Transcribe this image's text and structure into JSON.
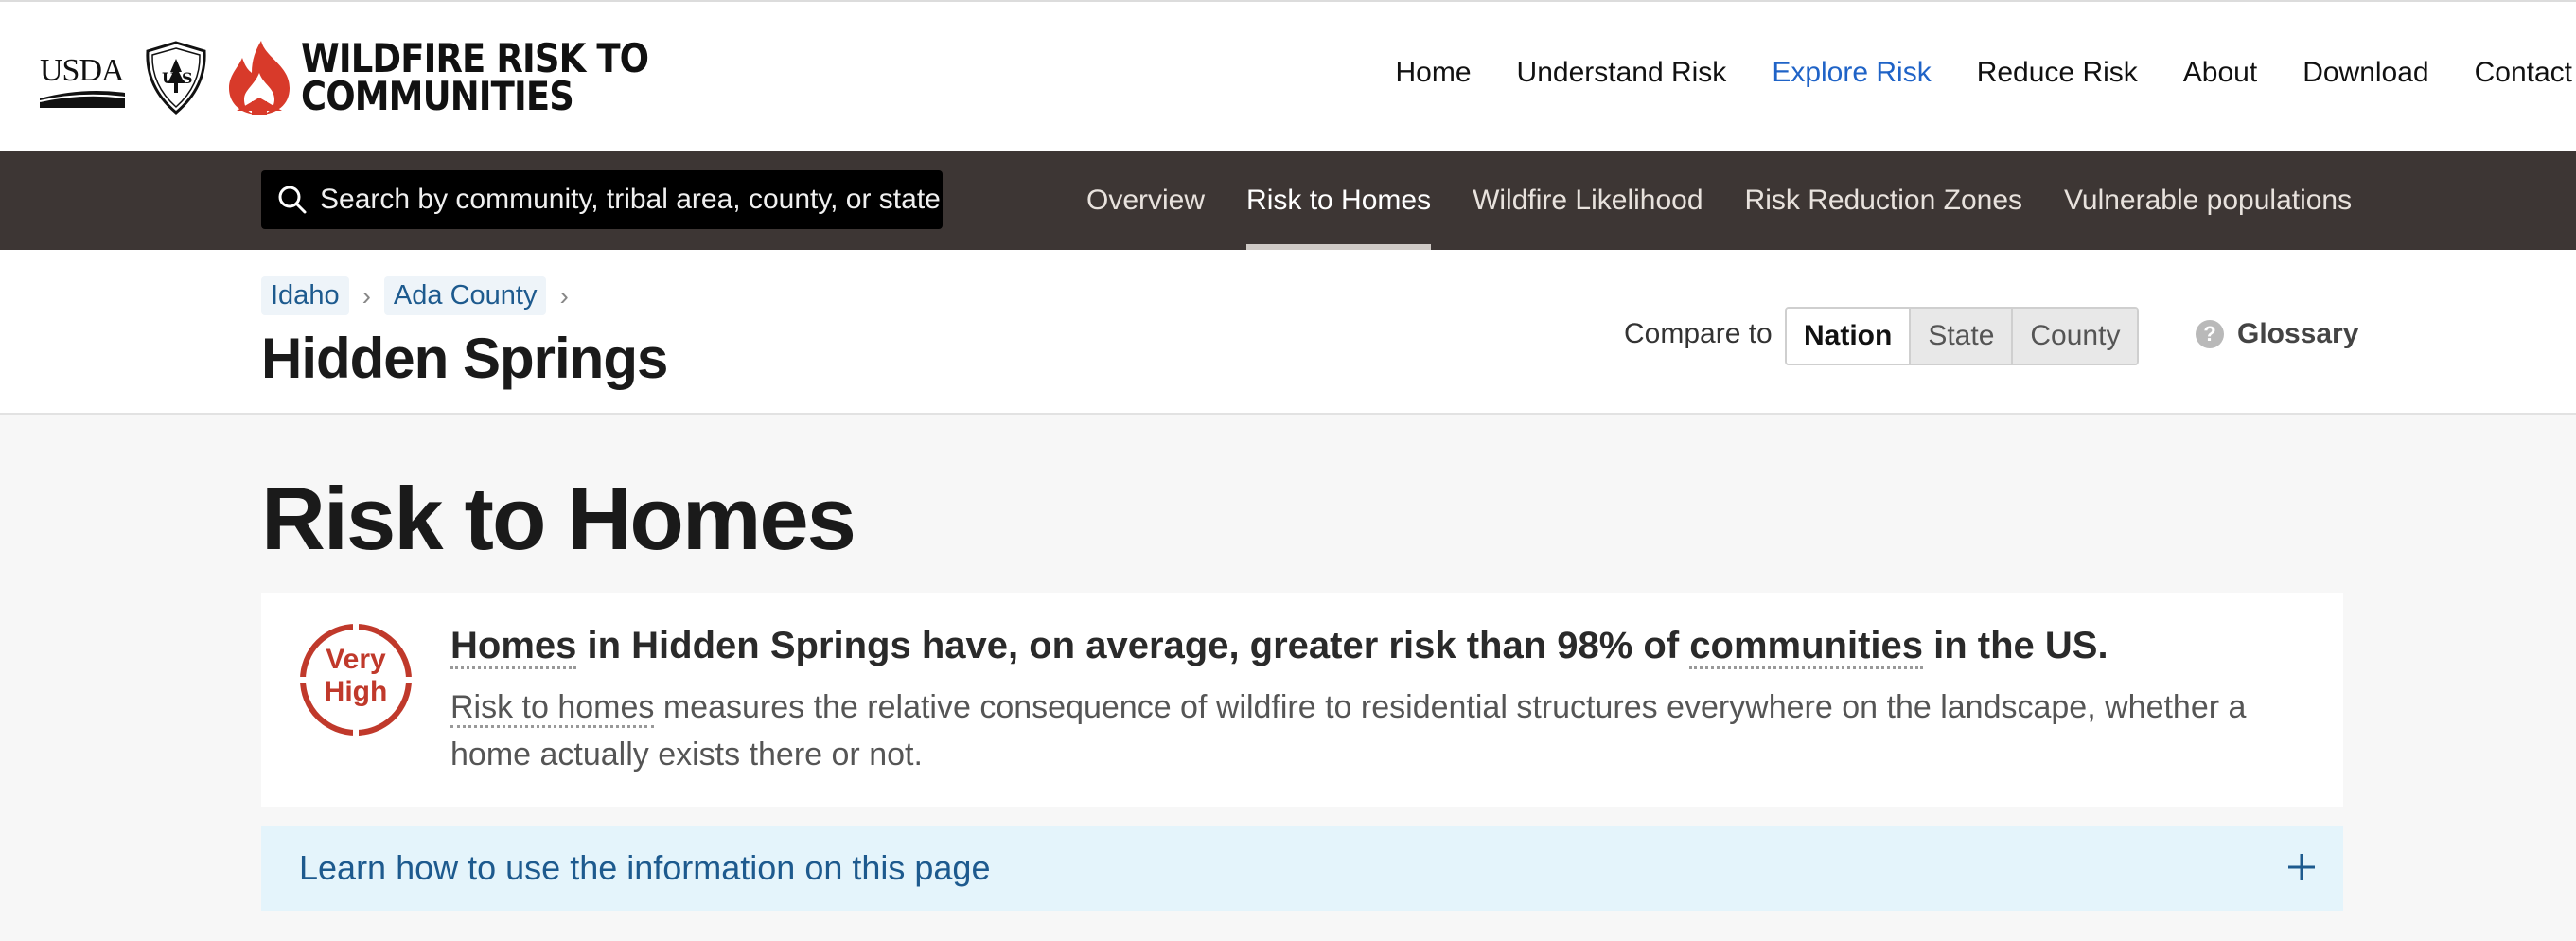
{
  "header": {
    "usda_wordmark": "USDA",
    "title_line1": "WILDFIRE RISK TO",
    "title_line2": "COMMUNITIES",
    "nav": [
      "Home",
      "Understand Risk",
      "Explore Risk",
      "Reduce Risk",
      "About",
      "Download",
      "Contact"
    ],
    "active_nav": "Explore Risk",
    "accent_color": "#1f63c7"
  },
  "subnav": {
    "search_placeholder": "Search by community, tribal area, county, or state",
    "tabs": [
      "Overview",
      "Risk to Homes",
      "Wildfire Likelihood",
      "Risk Reduction Zones",
      "Vulnerable populations"
    ],
    "active_tab": "Risk to Homes",
    "bar_color": "#3d3634"
  },
  "location": {
    "breadcrumbs": [
      "Idaho",
      "Ada County"
    ],
    "name": "Hidden Springs",
    "compare_label": "Compare to",
    "compare_options": [
      "Nation",
      "State",
      "County"
    ],
    "compare_selected": "Nation",
    "glossary_label": "Glossary"
  },
  "main": {
    "title": "Risk to Homes",
    "risk_level_line1": "Very",
    "risk_level_line2": "High",
    "risk_color": "#c0392b",
    "headline": {
      "term1": "Homes",
      "part1": " in Hidden Springs have, on average, greater risk than 98% of ",
      "term2": "communities",
      "part2": " in the US."
    },
    "description": {
      "term": "Risk to homes",
      "text": " measures the relative consequence of wildfire to residential structures everywhere on the landscape, whether a home actually exists there or not."
    },
    "learn_more": "Learn how to use the information on this page"
  }
}
